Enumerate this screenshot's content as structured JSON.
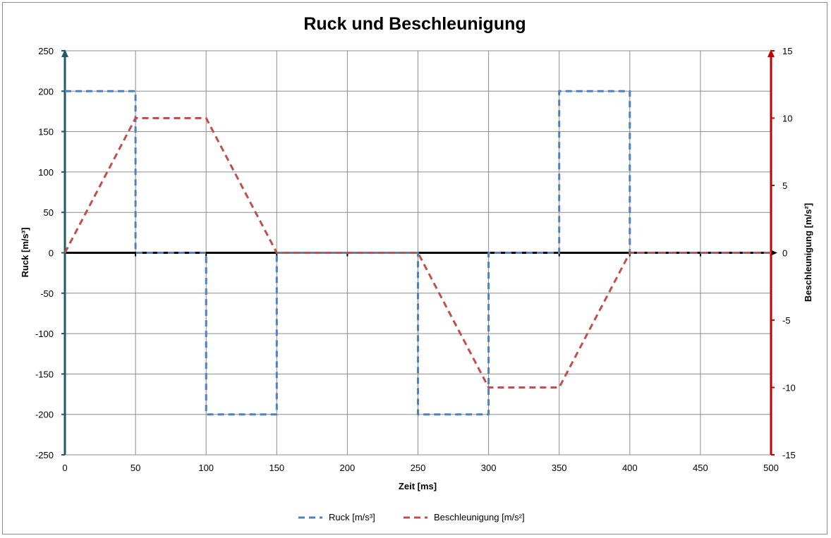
{
  "chart_data": {
    "type": "line",
    "title": "Ruck und Beschleunigung",
    "xlabel": "Zeit [ms]",
    "ylabel": "Ruck [m/s³]",
    "ylabel_right": "Beschleunigung [m/s²]",
    "xlim": [
      0,
      500
    ],
    "ylim": [
      -250,
      250
    ],
    "ylim_right": [
      -15,
      15
    ],
    "x_ticks": [
      0,
      50,
      100,
      150,
      200,
      250,
      300,
      350,
      400,
      450,
      500
    ],
    "y_ticks": [
      -250,
      -200,
      -150,
      -100,
      -50,
      0,
      50,
      100,
      150,
      200,
      250
    ],
    "y_ticks_right": [
      -15,
      -10,
      -5,
      0,
      5,
      10,
      15
    ],
    "grid": true,
    "legend_position": "bottom",
    "series": [
      {
        "name": "Ruck [m/s³]",
        "axis": "left",
        "color": "#4f81bd",
        "style": "dashed",
        "x": [
          0,
          50,
          50,
          100,
          100,
          150,
          150,
          250,
          250,
          300,
          300,
          350,
          350,
          400,
          400,
          500
        ],
        "y": [
          200,
          200,
          0,
          0,
          -200,
          -200,
          0,
          0,
          -200,
          -200,
          0,
          0,
          200,
          200,
          0,
          0
        ]
      },
      {
        "name": "Beschleunigung [m/s²]",
        "axis": "right",
        "color": "#c0504d",
        "style": "dashed",
        "x": [
          0,
          50,
          100,
          150,
          250,
          300,
          350,
          400,
          500
        ],
        "y": [
          0,
          10,
          10,
          0,
          0,
          -10,
          -10,
          0,
          0
        ]
      }
    ]
  },
  "colors": {
    "left_axis": "#215968",
    "right_axis": "#c00000",
    "zero_line": "#000000",
    "grid": "#8c8c8c"
  }
}
